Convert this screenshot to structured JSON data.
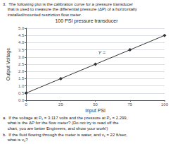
{
  "chart_data": {
    "type": "line",
    "title": "100 PSI pressure transducer",
    "header": "3.  The following plot is the calibration curve for a pressure transducer\n    that is used to measure the differential pressure (ΔP) of a horizontally\n    installed/mounted restriction flow meter.",
    "footer": [
      "a.  If the voltage at P₁ = 3.117 volts and the pressure at P₂ = 2.299,\n    what is the ΔP for the flow meter? (Do not try to read off the\n    chart, you are better Engineers, and show your work!)",
      "b.  If the fluid flowing through the meter is water, and v₁ = 22 ft/sec,\n    what is v₂?"
    ],
    "xlabel": "Input PSI",
    "ylabel": "Output Voltage",
    "x": [
      0,
      25,
      50,
      75,
      100
    ],
    "values": [
      0.5,
      1.5,
      2.5,
      3.5,
      4.5
    ],
    "color": "#333333",
    "marker": "diamond",
    "xlim": [
      0,
      100
    ],
    "ylim": [
      0,
      5
    ],
    "xticks": [
      0,
      25,
      50,
      75,
      100
    ],
    "yticks": [
      {
        "value": 0,
        "label": "0.0"
      },
      0.5,
      {
        "value": 1.0,
        "label": "1.0"
      },
      1.5,
      {
        "value": 2.0,
        "label": "2.0"
      },
      2.5,
      {
        "value": 3.0,
        "label": "3.0"
      },
      3.5,
      {
        "value": 4.0,
        "label": "4.0"
      },
      4.5,
      {
        "value": 5.0,
        "label": "5.0"
      }
    ],
    "grid": true,
    "annotations": [
      {
        "text": "Y =",
        "x": 52,
        "y": 3.1
      }
    ]
  }
}
